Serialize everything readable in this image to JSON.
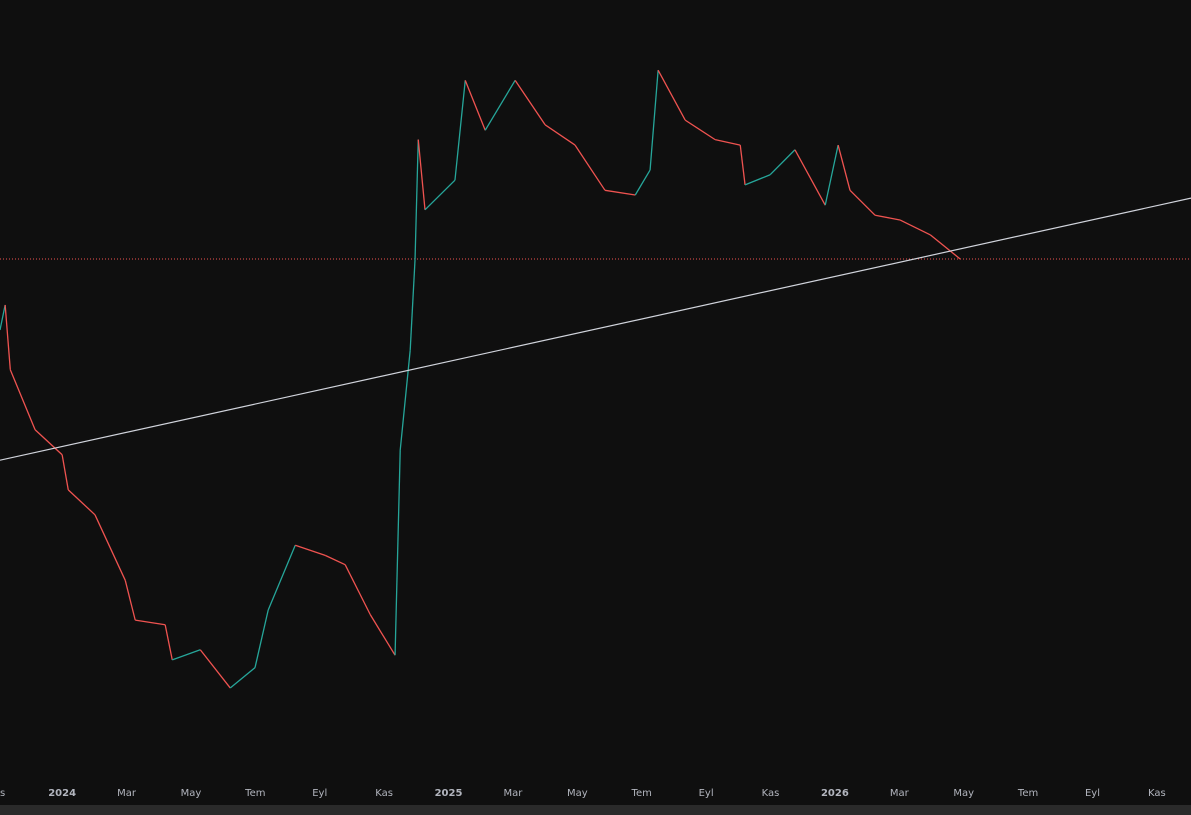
{
  "chart_data": {
    "type": "line",
    "x": [
      -1.93,
      -1.77,
      -1.61,
      -0.84,
      0,
      0.19,
      1.02,
      1.96,
      2.27,
      3.2,
      3.42,
      4.29,
      5.22,
      5.99,
      6.4,
      7.24,
      8.17,
      8.79,
      9.57,
      10.34,
      10.5,
      10.81,
      10.96,
      11.06,
      11.27,
      12.2,
      12.52,
      13.14,
      14.07,
      15.0,
      15.93,
      16.86,
      17.8,
      18.26,
      18.51,
      19.35,
      20.28,
      21.06,
      21.21,
      21.99,
      22.76,
      23.7,
      24.1,
      24.47,
      25.25,
      26.02,
      26.96,
      27.89
    ],
    "values": [
      57.7,
      60.9,
      52.6,
      44.9,
      41.7,
      37.2,
      34.0,
      25.6,
      20.5,
      19.9,
      15.4,
      16.7,
      11.8,
      14.4,
      21.8,
      30.1,
      28.8,
      27.6,
      21.2,
      16.0,
      42.3,
      55.1,
      66.7,
      82.1,
      73.1,
      76.9,
      89.7,
      83.3,
      89.7,
      84.0,
      81.4,
      75.6,
      75.0,
      78.2,
      91.0,
      84.6,
      82.1,
      81.4,
      76.3,
      77.6,
      80.8,
      73.7,
      81.4,
      75.6,
      72.4,
      71.8,
      69.9,
      66.8
    ],
    "up_color": "#26a69a",
    "down_color": "#ef5350",
    "xlim": [
      -1.93,
      35.06
    ],
    "ylim": [
      0,
      100
    ],
    "xticks": [
      {
        "value": -2,
        "label": "s"
      },
      {
        "value": 0,
        "label": "2024"
      },
      {
        "value": 2,
        "label": "Mar"
      },
      {
        "value": 4,
        "label": "May"
      },
      {
        "value": 6,
        "label": "Tem"
      },
      {
        "value": 8,
        "label": "Eyl"
      },
      {
        "value": 10,
        "label": "Kas"
      },
      {
        "value": 12,
        "label": "2025"
      },
      {
        "value": 14,
        "label": "Mar"
      },
      {
        "value": 16,
        "label": "May"
      },
      {
        "value": 18,
        "label": "Tem"
      },
      {
        "value": 20,
        "label": "Eyl"
      },
      {
        "value": 22,
        "label": "Kas"
      },
      {
        "value": 24,
        "label": "2026"
      },
      {
        "value": 26,
        "label": "Mar"
      },
      {
        "value": 28,
        "label": "May"
      },
      {
        "value": 30,
        "label": "Tem"
      },
      {
        "value": 32,
        "label": "Eyl"
      },
      {
        "value": 34,
        "label": "Kas"
      }
    ],
    "trendline": {
      "x": [
        -1.93,
        35.06
      ],
      "values": [
        41.0,
        74.6
      ],
      "color": "#d1d4dc"
    },
    "price_line": {
      "value": 66.8,
      "color": "#ef5350"
    }
  }
}
